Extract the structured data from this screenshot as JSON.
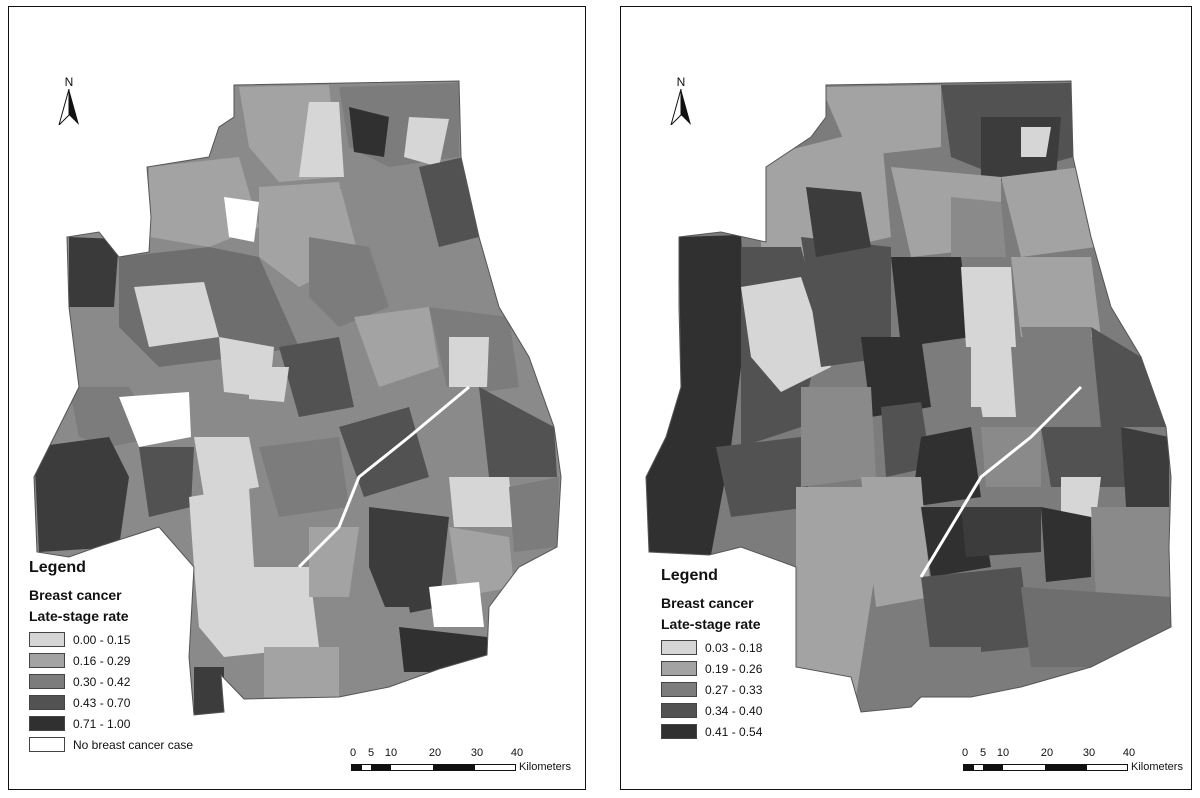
{
  "left": {
    "north": "N",
    "legend": {
      "title": "Legend",
      "subtitle1": "Breast cancer",
      "subtitle2": "Late-stage rate",
      "items": [
        {
          "label": "0.00 - 0.15",
          "color": "#d6d6d6"
        },
        {
          "label": "0.16 - 0.29",
          "color": "#a3a3a3"
        },
        {
          "label": "0.30 - 0.42",
          "color": "#7c7c7c"
        },
        {
          "label": "0.43 - 0.70",
          "color": "#525252"
        },
        {
          "label": "0.71 - 1.00",
          "color": "#303030"
        },
        {
          "label": "No breast cancer case",
          "color": "#ffffff"
        }
      ]
    },
    "scale": {
      "ticks": [
        "0",
        "5",
        "10",
        "20",
        "30",
        "40"
      ],
      "unit": "Kilometers"
    }
  },
  "right": {
    "north": "N",
    "legend": {
      "title": "Legend",
      "subtitle1": "Breast cancer",
      "subtitle2": "Late-stage rate",
      "items": [
        {
          "label": "0.03 - 0.18",
          "color": "#d6d6d6"
        },
        {
          "label": "0.19 - 0.26",
          "color": "#a3a3a3"
        },
        {
          "label": "0.27 - 0.33",
          "color": "#7c7c7c"
        },
        {
          "label": "0.34 - 0.40",
          "color": "#525252"
        },
        {
          "label": "0.41 - 0.54",
          "color": "#303030"
        }
      ]
    },
    "scale": {
      "ticks": [
        "0",
        "5",
        "10",
        "20",
        "30",
        "40"
      ],
      "unit": "Kilometers"
    }
  }
}
